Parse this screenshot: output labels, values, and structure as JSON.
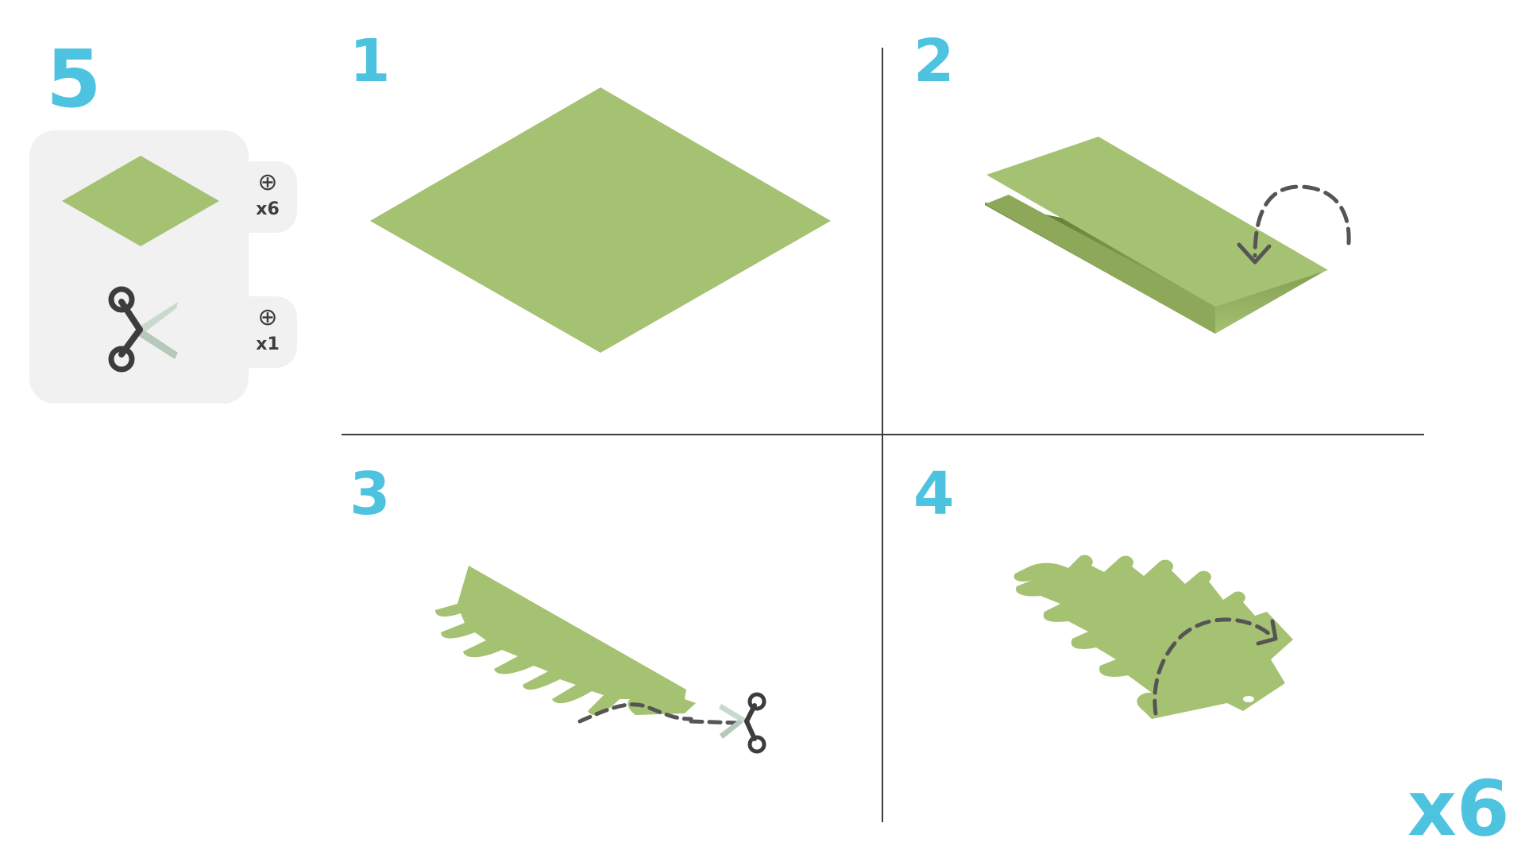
{
  "colors": {
    "accent": "#4ec3df",
    "paper": "#a5c172",
    "paper_shadow": "#6f8a3c",
    "ink": "#3d3d3d",
    "panel": "#f1f1f1",
    "blade": "#c9d9cc"
  },
  "header": {
    "step_group_number": "5"
  },
  "supplies": {
    "items": [
      {
        "icon": "paper-square-icon",
        "plus": "⊕",
        "count": "x6"
      },
      {
        "icon": "scissors-icon",
        "plus": "⊕",
        "count": "x1"
      }
    ]
  },
  "steps": [
    {
      "number": "1",
      "icon": "flat-paper-square-icon"
    },
    {
      "number": "2",
      "icon": "fold-in-half-icon"
    },
    {
      "number": "3",
      "icon": "cut-fringe-icon"
    },
    {
      "number": "4",
      "icon": "unfold-paper-icon"
    }
  ],
  "footer": {
    "repeat_count": "x6"
  }
}
